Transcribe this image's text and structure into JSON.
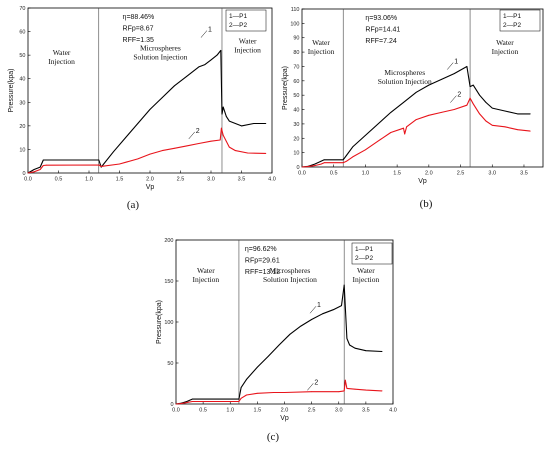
{
  "legend": [
    "1—P1",
    "2—P2"
  ],
  "colors": {
    "P1": "#000000",
    "P2": "#e8141b"
  },
  "chart_data": [
    {
      "panel_label": "(a)",
      "type": "line",
      "xlabel": "Vp",
      "ylabel": "Pressure(kpa)",
      "xlim": [
        0.0,
        4.0
      ],
      "ylim": [
        0,
        70
      ],
      "xticks": [
        "0.0",
        "0.5",
        "1.0",
        "1.5",
        "2.0",
        "2.5",
        "3.0",
        "3.5",
        "4.0"
      ],
      "yticks": [
        "0",
        "10",
        "20",
        "30",
        "40",
        "50",
        "60",
        "70"
      ],
      "metrics": [
        "η=88.46%",
        "RFp=8.67",
        "RFF=1.35"
      ],
      "phase_boundaries": [
        1.16,
        3.18
      ],
      "phases": [
        {
          "lines": [
            "Water",
            "Injection"
          ]
        },
        {
          "lines": [
            "Microspheres",
            "Solution Injection"
          ]
        },
        {
          "lines": [
            "Water",
            "Injection"
          ]
        }
      ],
      "curve_labels": [
        "1",
        "2"
      ],
      "series": [
        {
          "name": "P1",
          "points": [
            [
              0,
              0
            ],
            [
              0.1,
              1.5
            ],
            [
              0.2,
              2.5
            ],
            [
              0.25,
              5.5
            ],
            [
              0.3,
              5.5
            ],
            [
              1.16,
              5.5
            ],
            [
              1.2,
              2.5
            ],
            [
              1.4,
              9
            ],
            [
              1.6,
              15
            ],
            [
              1.8,
              21
            ],
            [
              2.0,
              27
            ],
            [
              2.2,
              32
            ],
            [
              2.4,
              37
            ],
            [
              2.6,
              41
            ],
            [
              2.8,
              45
            ],
            [
              2.9,
              46
            ],
            [
              3.0,
              48
            ],
            [
              3.1,
              50
            ],
            [
              3.16,
              52
            ],
            [
              3.18,
              25
            ],
            [
              3.2,
              28
            ],
            [
              3.25,
              24
            ],
            [
              3.3,
              22
            ],
            [
              3.5,
              20
            ],
            [
              3.7,
              21
            ],
            [
              3.9,
              21
            ]
          ]
        },
        {
          "name": "P2",
          "points": [
            [
              0,
              0
            ],
            [
              0.1,
              0.5
            ],
            [
              0.2,
              1.5
            ],
            [
              0.25,
              3.2
            ],
            [
              0.3,
              3.3
            ],
            [
              1.16,
              3.4
            ],
            [
              1.2,
              2.8
            ],
            [
              1.5,
              3.8
            ],
            [
              1.8,
              6
            ],
            [
              2.0,
              8
            ],
            [
              2.2,
              9.5
            ],
            [
              2.4,
              10.5
            ],
            [
              2.6,
              11.5
            ],
            [
              2.8,
              12.5
            ],
            [
              3.0,
              13.5
            ],
            [
              3.15,
              14
            ],
            [
              3.17,
              19
            ],
            [
              3.2,
              16
            ],
            [
              3.3,
              11
            ],
            [
              3.4,
              9.5
            ],
            [
              3.6,
              8.5
            ],
            [
              3.9,
              8.3
            ]
          ]
        }
      ]
    },
    {
      "panel_label": "(b)",
      "type": "line",
      "xlabel": "Vp",
      "ylabel": "Pressure(kpa)",
      "xlim": [
        0.0,
        3.8
      ],
      "ylim": [
        0,
        110
      ],
      "xticks": [
        "0.0",
        "0.5",
        "1.0",
        "1.5",
        "2.0",
        "2.5",
        "3.0",
        "3.5"
      ],
      "yticks": [
        "0",
        "10",
        "20",
        "30",
        "40",
        "50",
        "60",
        "70",
        "80",
        "90",
        "100",
        "110"
      ],
      "metrics": [
        "η=93.06%",
        "RFp=14.41",
        "RFF=7.24"
      ],
      "phase_boundaries": [
        0.65,
        2.65
      ],
      "phases": [
        {
          "lines": [
            "Water",
            "Injection"
          ]
        },
        {
          "lines": [
            "Microspheres",
            "Solution Injection"
          ]
        },
        {
          "lines": [
            "Water",
            "Injection"
          ]
        }
      ],
      "curve_labels": [
        "1",
        "2"
      ],
      "series": [
        {
          "name": "P1",
          "points": [
            [
              0,
              0
            ],
            [
              0.1,
              0.5
            ],
            [
              0.2,
              2
            ],
            [
              0.3,
              4
            ],
            [
              0.35,
              5
            ],
            [
              0.65,
              5
            ],
            [
              0.7,
              8
            ],
            [
              0.8,
              14
            ],
            [
              1.0,
              22
            ],
            [
              1.2,
              30
            ],
            [
              1.4,
              38
            ],
            [
              1.6,
              45
            ],
            [
              1.8,
              52
            ],
            [
              2.0,
              57
            ],
            [
              2.2,
              61
            ],
            [
              2.4,
              65
            ],
            [
              2.6,
              70
            ],
            [
              2.65,
              56
            ],
            [
              2.7,
              57
            ],
            [
              2.8,
              50
            ],
            [
              2.9,
              45
            ],
            [
              3.0,
              41
            ],
            [
              3.2,
              39
            ],
            [
              3.4,
              37
            ],
            [
              3.6,
              37
            ]
          ]
        },
        {
          "name": "P2",
          "points": [
            [
              0,
              0
            ],
            [
              0.1,
              0.3
            ],
            [
              0.2,
              1
            ],
            [
              0.3,
              2
            ],
            [
              0.35,
              3
            ],
            [
              0.65,
              3
            ],
            [
              0.7,
              4
            ],
            [
              0.8,
              7
            ],
            [
              1.0,
              12
            ],
            [
              1.2,
              18
            ],
            [
              1.4,
              24
            ],
            [
              1.6,
              27
            ],
            [
              1.62,
              23
            ],
            [
              1.65,
              28
            ],
            [
              1.8,
              33
            ],
            [
              2.0,
              36
            ],
            [
              2.2,
              38
            ],
            [
              2.4,
              40
            ],
            [
              2.6,
              43
            ],
            [
              2.65,
              48
            ],
            [
              2.7,
              44
            ],
            [
              2.8,
              37
            ],
            [
              2.9,
              32
            ],
            [
              3.0,
              29
            ],
            [
              3.2,
              28
            ],
            [
              3.4,
              26
            ],
            [
              3.6,
              25
            ]
          ]
        }
      ]
    },
    {
      "panel_label": "(c)",
      "type": "line",
      "xlabel": "Vp",
      "ylabel": "Pressure(kpa)",
      "xlim": [
        0.0,
        4.0
      ],
      "ylim": [
        0,
        200
      ],
      "xticks": [
        "0.0",
        "0.5",
        "1.0",
        "1.5",
        "2.0",
        "2.5",
        "3.0",
        "3.5",
        "4.0"
      ],
      "yticks": [
        "0",
        "50",
        "100",
        "150",
        "200"
      ],
      "metrics": [
        "η=96.62%",
        "RFp=29.61",
        "RFF=13.12"
      ],
      "phase_boundaries": [
        1.16,
        3.1
      ],
      "phases": [
        {
          "lines": [
            "Water",
            "Injection"
          ]
        },
        {
          "lines": [
            "Microspheres",
            "Solution Injection"
          ]
        },
        {
          "lines": [
            "Water",
            "Injection"
          ]
        }
      ],
      "curve_labels": [
        "1",
        "2"
      ],
      "series": [
        {
          "name": "P1",
          "points": [
            [
              0,
              0
            ],
            [
              0.1,
              1
            ],
            [
              0.2,
              3
            ],
            [
              0.3,
              6
            ],
            [
              1.16,
              6
            ],
            [
              1.2,
              20
            ],
            [
              1.3,
              30
            ],
            [
              1.5,
              45
            ],
            [
              1.7,
              58
            ],
            [
              1.9,
              72
            ],
            [
              2.1,
              85
            ],
            [
              2.3,
              95
            ],
            [
              2.5,
              103
            ],
            [
              2.7,
              110
            ],
            [
              2.9,
              115
            ],
            [
              3.05,
              120
            ],
            [
              3.1,
              145
            ],
            [
              3.15,
              80
            ],
            [
              3.2,
              72
            ],
            [
              3.3,
              68
            ],
            [
              3.5,
              65
            ],
            [
              3.8,
              64
            ]
          ]
        },
        {
          "name": "P2",
          "points": [
            [
              0,
              0
            ],
            [
              0.1,
              0.5
            ],
            [
              0.3,
              3
            ],
            [
              1.16,
              3
            ],
            [
              1.2,
              7
            ],
            [
              1.3,
              11
            ],
            [
              1.5,
              13
            ],
            [
              1.8,
              14
            ],
            [
              2.0,
              14
            ],
            [
              2.5,
              15
            ],
            [
              3.0,
              15
            ],
            [
              3.1,
              16
            ],
            [
              3.12,
              29
            ],
            [
              3.15,
              19
            ],
            [
              3.3,
              18
            ],
            [
              3.5,
              17
            ],
            [
              3.8,
              16
            ]
          ]
        }
      ]
    }
  ]
}
